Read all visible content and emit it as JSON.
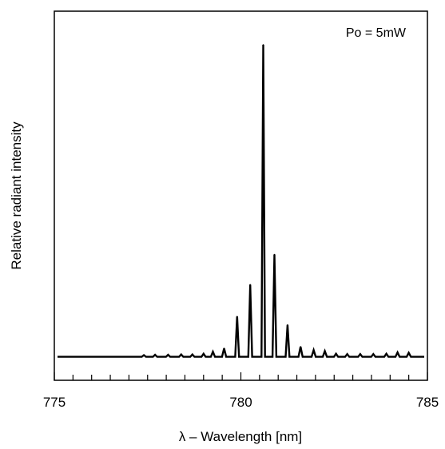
{
  "chart_data": {
    "type": "line",
    "title": "",
    "xlabel": "λ – Wavelength [nm]",
    "ylabel": "Relative radiant intensity",
    "annotation": "Po = 5mW",
    "xlim": [
      775,
      785
    ],
    "ylim": [
      0,
      1
    ],
    "x_ticks": [
      775,
      780,
      785
    ],
    "x_minor_step": 0.5,
    "y_ticks_shown": false,
    "grid": false,
    "legend": "none",
    "baseline": 0.07,
    "series": [
      {
        "peaks": [
          {
            "x": 777.4,
            "y": 0.075
          },
          {
            "x": 777.7,
            "y": 0.076
          },
          {
            "x": 778.05,
            "y": 0.076
          },
          {
            "x": 778.4,
            "y": 0.077
          },
          {
            "x": 778.7,
            "y": 0.077
          },
          {
            "x": 779.0,
            "y": 0.079
          },
          {
            "x": 779.25,
            "y": 0.085
          },
          {
            "x": 779.55,
            "y": 0.095
          },
          {
            "x": 779.9,
            "y": 0.19
          },
          {
            "x": 780.25,
            "y": 0.285
          },
          {
            "x": 780.6,
            "y": 1.0
          },
          {
            "x": 780.9,
            "y": 0.375
          },
          {
            "x": 781.25,
            "y": 0.165
          },
          {
            "x": 781.6,
            "y": 0.1
          },
          {
            "x": 781.95,
            "y": 0.09
          },
          {
            "x": 782.25,
            "y": 0.087
          },
          {
            "x": 782.55,
            "y": 0.079
          },
          {
            "x": 782.85,
            "y": 0.078
          },
          {
            "x": 783.2,
            "y": 0.078
          },
          {
            "x": 783.55,
            "y": 0.078
          },
          {
            "x": 783.9,
            "y": 0.079
          },
          {
            "x": 784.2,
            "y": 0.083
          },
          {
            "x": 784.5,
            "y": 0.082
          }
        ]
      }
    ]
  }
}
